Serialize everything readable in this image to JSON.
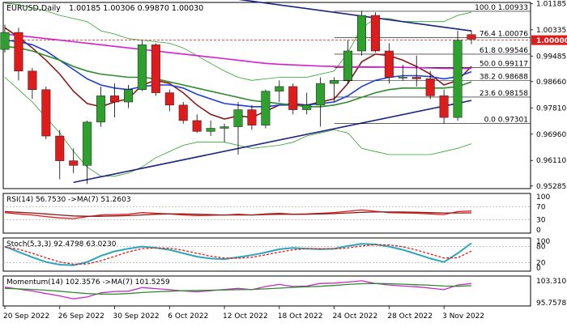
{
  "header": {
    "symbol_label": "EURUSD,Daily",
    "ohlc": "1.00185 1.00306 0.99870 1.00030"
  },
  "colors": {
    "bull": "#2ea02e",
    "bear": "#e01b1b",
    "ma_fast": "#8b1a1a",
    "ma_mid": "#1f3fd6",
    "ma_slow": "#2e8b2e",
    "ma_long": "#d21fd2",
    "bands": "#2ea02e",
    "trendline": "#1a237e",
    "fib": "#000000",
    "price_line": "#e01b1b",
    "axis_text": "#000000",
    "grid": "#9a9a9a"
  },
  "chart_data": [
    {
      "type": "candlestick",
      "title": "EURUSD,Daily",
      "dates": [
        "20 Sep 2022",
        "21 Sep 2022",
        "22 Sep 2022",
        "23 Sep 2022",
        "26 Sep 2022",
        "27 Sep 2022",
        "28 Sep 2022",
        "29 Sep 2022",
        "30 Sep 2022",
        "3 Oct 2022",
        "4 Oct 2022",
        "5 Oct 2022",
        "6 Oct 2022",
        "7 Oct 2022",
        "10 Oct 2022",
        "11 Oct 2022",
        "12 Oct 2022",
        "13 Oct 2022",
        "14 Oct 2022",
        "17 Oct 2022",
        "18 Oct 2022",
        "19 Oct 2022",
        "20 Oct 2022",
        "21 Oct 2022",
        "24 Oct 2022",
        "25 Oct 2022",
        "26 Oct 2022",
        "27 Oct 2022",
        "28 Oct 2022",
        "31 Oct 2022",
        "1 Nov 2022",
        "2 Nov 2022",
        "3 Nov 2022",
        "4 Nov 2022",
        "7 Nov 2022"
      ],
      "candles": [
        [
          0.997,
          1.005,
          0.996,
          1.0025
        ],
        [
          1.0025,
          1.004,
          0.987,
          0.99
        ],
        [
          0.99,
          0.991,
          0.981,
          0.984
        ],
        [
          0.984,
          0.985,
          0.968,
          0.969
        ],
        [
          0.969,
          0.971,
          0.955,
          0.961
        ],
        [
          0.961,
          0.965,
          0.957,
          0.9595
        ],
        [
          0.9595,
          0.974,
          0.9535,
          0.9735
        ],
        [
          0.9735,
          0.985,
          0.972,
          0.982
        ],
        [
          0.982,
          0.986,
          0.975,
          0.98
        ],
        [
          0.98,
          0.9855,
          0.978,
          0.984
        ],
        [
          0.984,
          0.9999,
          0.9835,
          0.9985
        ],
        [
          0.9985,
          0.999,
          0.982,
          0.983
        ],
        [
          0.983,
          0.984,
          0.977,
          0.979
        ],
        [
          0.979,
          0.98,
          0.973,
          0.974
        ],
        [
          0.974,
          0.976,
          0.97,
          0.9705
        ],
        [
          0.9705,
          0.974,
          0.969,
          0.9715
        ],
        [
          0.9715,
          0.973,
          0.967,
          0.972
        ],
        [
          0.972,
          0.98,
          0.963,
          0.9775
        ],
        [
          0.9775,
          0.979,
          0.971,
          0.9725
        ],
        [
          0.9725,
          0.984,
          0.9715,
          0.9835
        ],
        [
          0.9835,
          0.987,
          0.98,
          0.985
        ],
        [
          0.985,
          0.986,
          0.976,
          0.9775
        ],
        [
          0.9775,
          0.983,
          0.976,
          0.979
        ],
        [
          0.979,
          0.988,
          0.972,
          0.986
        ],
        [
          0.986,
          0.988,
          0.98,
          0.987
        ],
        [
          0.987,
          1.0,
          0.986,
          0.9965
        ],
        [
          0.9965,
          1.0095,
          0.995,
          1.008
        ],
        [
          1.008,
          1.009,
          0.996,
          0.9965
        ],
        [
          0.9965,
          0.999,
          0.986,
          0.988
        ],
        [
          0.988,
          0.992,
          0.987,
          0.988
        ],
        [
          0.988,
          0.995,
          0.985,
          0.9875
        ],
        [
          0.9875,
          0.99,
          0.981,
          0.982
        ],
        [
          0.982,
          0.984,
          0.973,
          0.975
        ],
        [
          0.975,
          1.003,
          0.974,
          1.0
        ],
        [
          1.0018,
          1.0031,
          0.9987,
          1.0003
        ]
      ],
      "price_scale": [
        "1.01185",
        "1.00335",
        "0.99485",
        "0.98660",
        "0.97810",
        "0.96960",
        "0.96110",
        "0.95285"
      ],
      "ylim": [
        0.952,
        1.0122
      ],
      "current_price": "1.00000",
      "fibonacci": [
        {
          "label": "100.0 1.00933",
          "value": 1.00933
        },
        {
          "label": "76.4 1.00076",
          "value": 1.00076
        },
        {
          "label": "61.8 0.99546",
          "value": 0.99546
        },
        {
          "label": "50.0 0.99117",
          "value": 0.99117
        },
        {
          "label": "38.2 0.98688",
          "value": 0.98688
        },
        {
          "label": "23.6 0.98158",
          "value": 0.98158
        },
        {
          "label": "0.0 0.97301",
          "value": 0.97301
        }
      ],
      "moving_averages": [
        {
          "color_key": "ma_fast",
          "values": [
            1.004,
            1.001,
            0.9975,
            0.9935,
            0.989,
            0.9835,
            0.9795,
            0.9785,
            0.98,
            0.981,
            0.9855,
            0.987,
            0.986,
            0.983,
            0.979,
            0.976,
            0.9745,
            0.9755,
            0.975,
            0.977,
            0.979,
            0.9795,
            0.979,
            0.98,
            0.981,
            0.986,
            0.993,
            0.9955,
            0.995,
            0.9935,
            0.9915,
            0.989,
            0.9855,
            0.987,
            0.9915
          ]
        },
        {
          "color_key": "ma_mid",
          "values": [
            1.0,
            0.9995,
            0.9985,
            0.9965,
            0.9935,
            0.9905,
            0.9875,
            0.9855,
            0.9845,
            0.984,
            0.985,
            0.9855,
            0.9855,
            0.9845,
            0.9825,
            0.981,
            0.9795,
            0.979,
            0.9785,
            0.9785,
            0.979,
            0.979,
            0.979,
            0.9795,
            0.98,
            0.982,
            0.985,
            0.987,
            0.988,
            0.9885,
            0.9885,
            0.9882,
            0.9875,
            0.9882,
            0.9898
          ]
        },
        {
          "color_key": "ma_slow",
          "values": [
            0.998,
            0.9975,
            0.9965,
            0.995,
            0.9935,
            0.9915,
            0.99,
            0.989,
            0.9885,
            0.988,
            0.988,
            0.9875,
            0.9865,
            0.9855,
            0.9845,
            0.9835,
            0.9825,
            0.9815,
            0.9805,
            0.98,
            0.9795,
            0.979,
            0.9785,
            0.9785,
            0.979,
            0.98,
            0.9815,
            0.983,
            0.984,
            0.9845,
            0.9845,
            0.9845,
            0.9845,
            0.985,
            0.9865
          ]
        },
        {
          "color_key": "ma_long",
          "values": [
            1.002,
            1.0015,
            1.001,
            1.0005,
            1.0,
            0.9995,
            0.999,
            0.9985,
            0.998,
            0.9975,
            0.997,
            0.9965,
            0.996,
            0.9955,
            0.995,
            0.9945,
            0.994,
            0.9935,
            0.993,
            0.9925,
            0.9922,
            0.992,
            0.9918,
            0.9916,
            0.9915,
            0.9914,
            0.9914,
            0.9914,
            0.9913,
            0.9912,
            0.9911,
            0.991,
            0.9909,
            0.9909,
            0.9909
          ]
        }
      ],
      "bands": {
        "color_key": "bands",
        "upper": [
          1.012,
          1.0115,
          1.0105,
          1.0095,
          1.008,
          1.007,
          1.006,
          1.003,
          1.002,
          1.0005,
          1.0,
          0.9995,
          0.999,
          0.9975,
          0.995,
          0.9925,
          0.99,
          0.988,
          0.987,
          0.9875,
          0.988,
          0.988,
          0.988,
          0.989,
          0.99,
          0.996,
          1.004,
          1.007,
          1.007,
          1.006,
          1.006,
          1.006,
          1.006,
          1.008,
          1.009
        ],
        "lower": [
          0.988,
          0.984,
          0.98,
          0.975,
          0.97,
          0.964,
          0.959,
          0.956,
          0.956,
          0.957,
          0.959,
          0.962,
          0.964,
          0.966,
          0.967,
          0.967,
          0.967,
          0.966,
          0.965,
          0.9655,
          0.966,
          0.967,
          0.969,
          0.97,
          0.971,
          0.97,
          0.965,
          0.964,
          0.963,
          0.963,
          0.963,
          0.963,
          0.964,
          0.965,
          0.9665
        ]
      },
      "trendlines": [
        {
          "color_key": "trendline",
          "from": [
            5,
            0.954
          ],
          "to": [
            34,
            0.9805
          ]
        },
        {
          "color_key": "trendline",
          "from": [
            14,
            1.015
          ],
          "to": [
            34,
            1.003
          ]
        }
      ],
      "xlabels": [
        {
          "label": "20 Sep 2022",
          "index": 0
        },
        {
          "label": "26 Sep 2022",
          "index": 4
        },
        {
          "label": "30 Sep 2022",
          "index": 8
        },
        {
          "label": "6 Oct 2022",
          "index": 12
        },
        {
          "label": "12 Oct 2022",
          "index": 16
        },
        {
          "label": "18 Oct 2022",
          "index": 20
        },
        {
          "label": "24 Oct 2022",
          "index": 24
        },
        {
          "label": "28 Oct 2022",
          "index": 28
        },
        {
          "label": "3 Nov 2022",
          "index": 32
        }
      ]
    },
    {
      "type": "line",
      "title": "RSI(14) 56.7530 ->MA(7) 51.2603",
      "ylim": [
        0,
        100
      ],
      "scale_labels": [
        "100",
        "70",
        "30",
        "0"
      ],
      "levels": [
        70,
        30
      ],
      "series": [
        {
          "color_key": "bear",
          "values": [
            52,
            48,
            45,
            40,
            36,
            34,
            40,
            45,
            46,
            47,
            52,
            50,
            48,
            45,
            43,
            44,
            45,
            47,
            45,
            48,
            50,
            47,
            48,
            50,
            52,
            56,
            60,
            56,
            52,
            51,
            50,
            48,
            46,
            55,
            56.753
          ]
        },
        {
          "color_key": "ma_fast",
          "values": [
            55,
            53,
            51,
            48,
            45,
            42,
            41,
            41,
            42,
            43,
            45,
            47,
            48,
            48,
            47,
            46,
            45,
            45,
            45,
            46,
            47,
            47,
            47,
            48,
            49,
            51,
            53,
            54,
            54,
            54,
            53,
            52,
            51,
            51,
            51.2603
          ]
        }
      ]
    },
    {
      "type": "line",
      "title": "Stoch(5,3,3) 92.4798 63.0230",
      "ylim": [
        0,
        100
      ],
      "scale_labels": [
        "100",
        "80",
        "20",
        "0"
      ],
      "levels": [
        80,
        20
      ],
      "series": [
        {
          "color_key": "stoch_main",
          "values": [
            80,
            60,
            40,
            22,
            12,
            10,
            22,
            45,
            62,
            72,
            80,
            75,
            68,
            55,
            42,
            35,
            33,
            40,
            48,
            58,
            70,
            75,
            72,
            70,
            72,
            82,
            90,
            88,
            80,
            68,
            52,
            35,
            22,
            55,
            92.4798
          ]
        },
        {
          "color_key": "bear",
          "values": [
            78,
            70,
            55,
            38,
            22,
            14,
            15,
            27,
            43,
            60,
            72,
            75,
            74,
            66,
            55,
            44,
            37,
            36,
            40,
            49,
            59,
            68,
            72,
            72,
            71,
            75,
            82,
            87,
            86,
            79,
            67,
            52,
            37,
            38,
            63.023
          ]
        }
      ]
    },
    {
      "type": "line",
      "title": "Momentum(14) 102.3576 ->MA(7) 101.5259",
      "ylim": [
        95.0,
        104.0
      ],
      "scale_labels": [
        "103.3101",
        "95.7578"
      ],
      "series": [
        {
          "color_key": "momentum_main",
          "values": [
            101.0,
            100.2,
            99.5,
            98.5,
            97.6,
            96.5,
            97.2,
            98.8,
            99.3,
            99.4,
            100.8,
            100.4,
            100.0,
            99.5,
            99.2,
            99.6,
            100.1,
            100.5,
            100.0,
            101.2,
            102.0,
            101.2,
            101.4,
            102.4,
            102.5,
            102.9,
            103.4,
            102.4,
            101.8,
            101.4,
            101.1,
            100.6,
            100.0,
            101.8,
            102.3576
          ]
        },
        {
          "color_key": "ma_slow",
          "values": [
            100.5,
            100.3,
            100.1,
            99.8,
            99.4,
            98.9,
            98.5,
            98.3,
            98.3,
            98.5,
            98.9,
            99.2,
            99.4,
            99.6,
            99.7,
            99.8,
            99.9,
            100.0,
            100.1,
            100.3,
            100.6,
            100.9,
            101.1,
            101.3,
            101.6,
            102.0,
            102.3,
            102.4,
            102.3,
            102.1,
            101.9,
            101.7,
            101.4,
            101.3,
            101.5259
          ]
        }
      ]
    }
  ],
  "extra_colors": {
    "stoch_main": "#2aa7b8",
    "momentum_main": "#c32bc3"
  }
}
